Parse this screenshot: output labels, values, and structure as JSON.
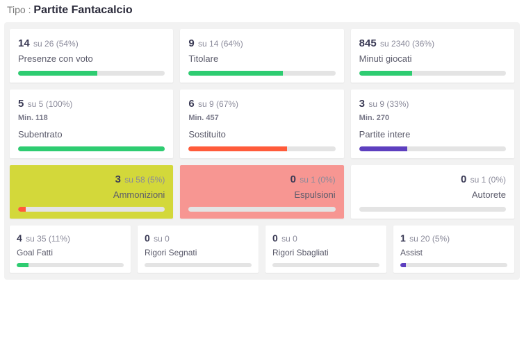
{
  "header": {
    "label": "Tipo : ",
    "value": "Partite Fantacalcio"
  },
  "colors": {
    "green": "#2ecc71",
    "orange": "#ff5b3a",
    "purple": "#5d3fbf",
    "track": "#e4e4e4",
    "panel_bg": "#f2f2f2",
    "highlight_yellow": "#d3d83a",
    "highlight_red": "#f79692"
  },
  "row1": [
    {
      "big": "14",
      "small": "su 26 (54%)",
      "title": "Presenze con voto",
      "pct": 54,
      "bar_color": "#2ecc71"
    },
    {
      "big": "9",
      "small": "su 14 (64%)",
      "title": "Titolare",
      "pct": 64,
      "bar_color": "#2ecc71"
    },
    {
      "big": "845",
      "small": "su 2340 (36%)",
      "title": "Minuti giocati",
      "pct": 36,
      "bar_color": "#2ecc71"
    }
  ],
  "row2": [
    {
      "big": "5",
      "small": "su 5 (100%)",
      "sub": "Min. 118",
      "title": "Subentrato",
      "pct": 100,
      "bar_color": "#2ecc71"
    },
    {
      "big": "6",
      "small": "su 9 (67%)",
      "sub": "Min. 457",
      "title": "Sostituito",
      "pct": 67,
      "bar_color": "#ff5b3a"
    },
    {
      "big": "3",
      "small": "su 9 (33%)",
      "sub": "Min. 270",
      "title": "Partite intere",
      "pct": 33,
      "bar_color": "#5d3fbf"
    }
  ],
  "row3": [
    {
      "big": "3",
      "small": "su 58 (5%)",
      "title": "Ammonizioni",
      "pct": 5,
      "bar_color": "#ff5b3a",
      "highlight": "yellow"
    },
    {
      "big": "0",
      "small": "su 1 (0%)",
      "title": "Espulsioni",
      "pct": 0,
      "bar_color": "#ff5b3a",
      "highlight": "red"
    },
    {
      "big": "0",
      "small": "su 1 (0%)",
      "title": "Autorete",
      "pct": 0,
      "bar_color": "#5d3fbf"
    }
  ],
  "row4": [
    {
      "big": "4",
      "small": "su 35 (11%)",
      "title": "Goal Fatti",
      "pct": 11,
      "bar_color": "#2ecc71"
    },
    {
      "big": "0",
      "small": "su 0",
      "title": "Rigori Segnati",
      "pct": 0,
      "bar_color": "#2ecc71"
    },
    {
      "big": "0",
      "small": "su 0",
      "title": "Rigori Sbagliati",
      "pct": 0,
      "bar_color": "#2ecc71"
    },
    {
      "big": "1",
      "small": "su 20 (5%)",
      "title": "Assist",
      "pct": 5,
      "bar_color": "#5d3fbf"
    }
  ]
}
